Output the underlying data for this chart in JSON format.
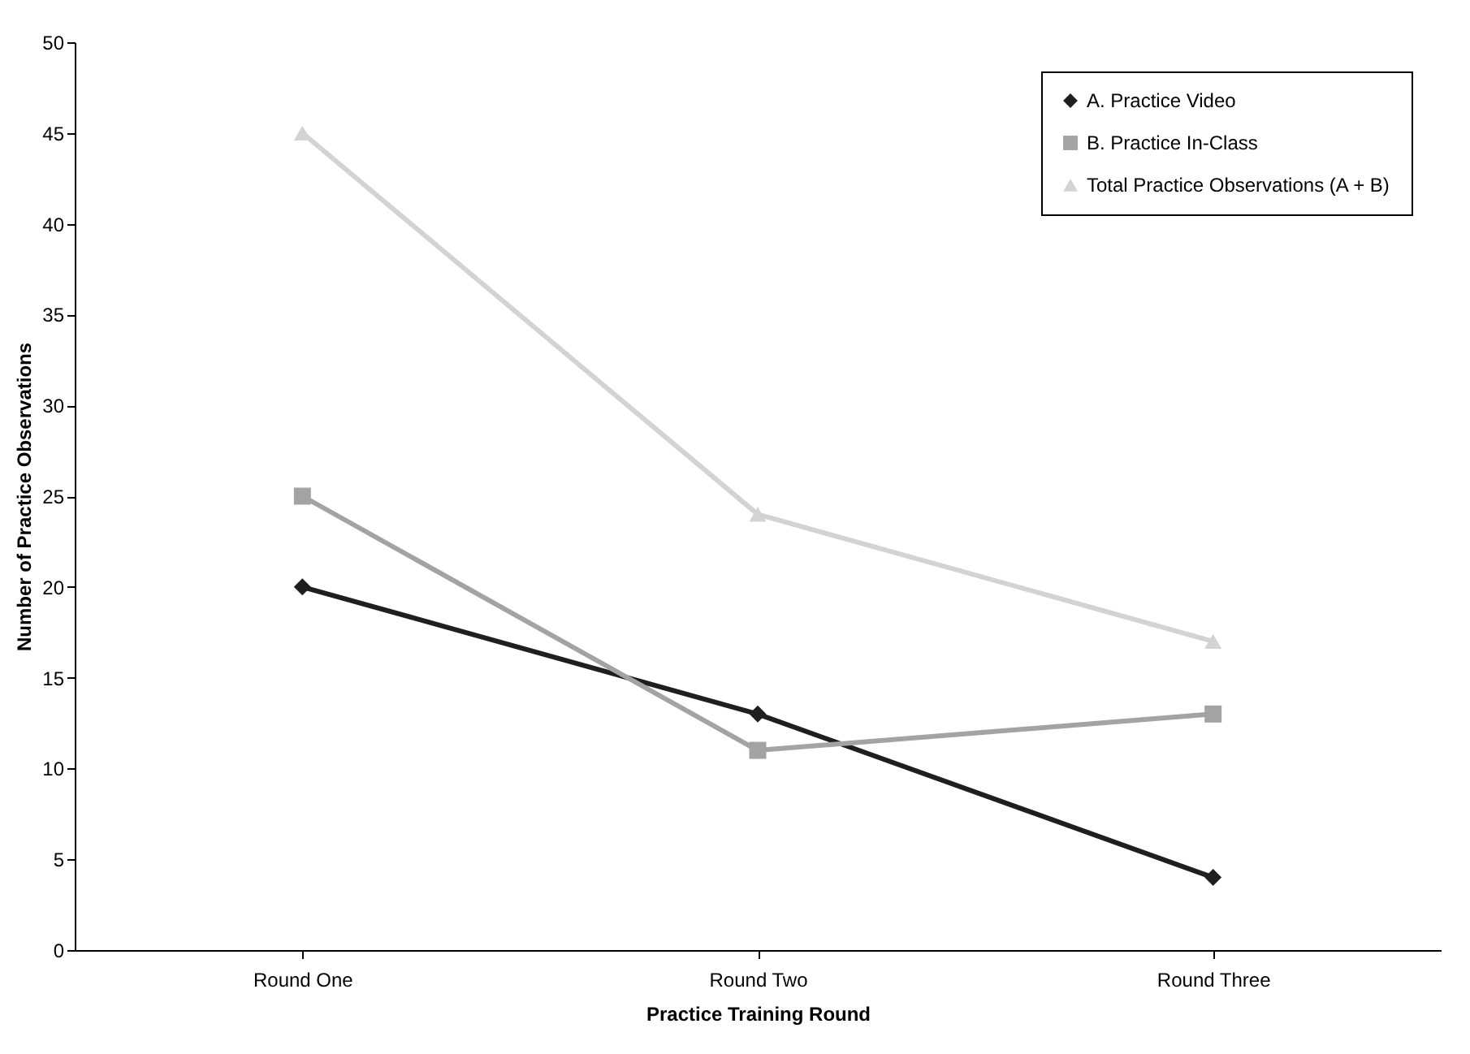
{
  "chart_data": {
    "type": "line",
    "xlabel": "Practice Training Round",
    "ylabel": "Number of Practice Observations",
    "categories": [
      "Round One",
      "Round Two",
      "Round Three"
    ],
    "series": [
      {
        "name": "A. Practice Video",
        "color": "#1f1f1f",
        "marker": "diamond",
        "values": [
          20,
          13,
          4
        ]
      },
      {
        "name": "B. Practice In-Class",
        "color": "#a3a3a3",
        "marker": "square",
        "values": [
          25,
          11,
          13
        ]
      },
      {
        "name": "Total Practice Observations (A + B)",
        "color": "#d3d3d3",
        "marker": "triangle",
        "values": [
          45,
          24,
          17
        ]
      }
    ],
    "ylim": [
      0,
      50
    ],
    "yticks": [
      0,
      5,
      10,
      15,
      20,
      25,
      30,
      35,
      40,
      45,
      50
    ],
    "grid": false,
    "legend": "top right"
  }
}
